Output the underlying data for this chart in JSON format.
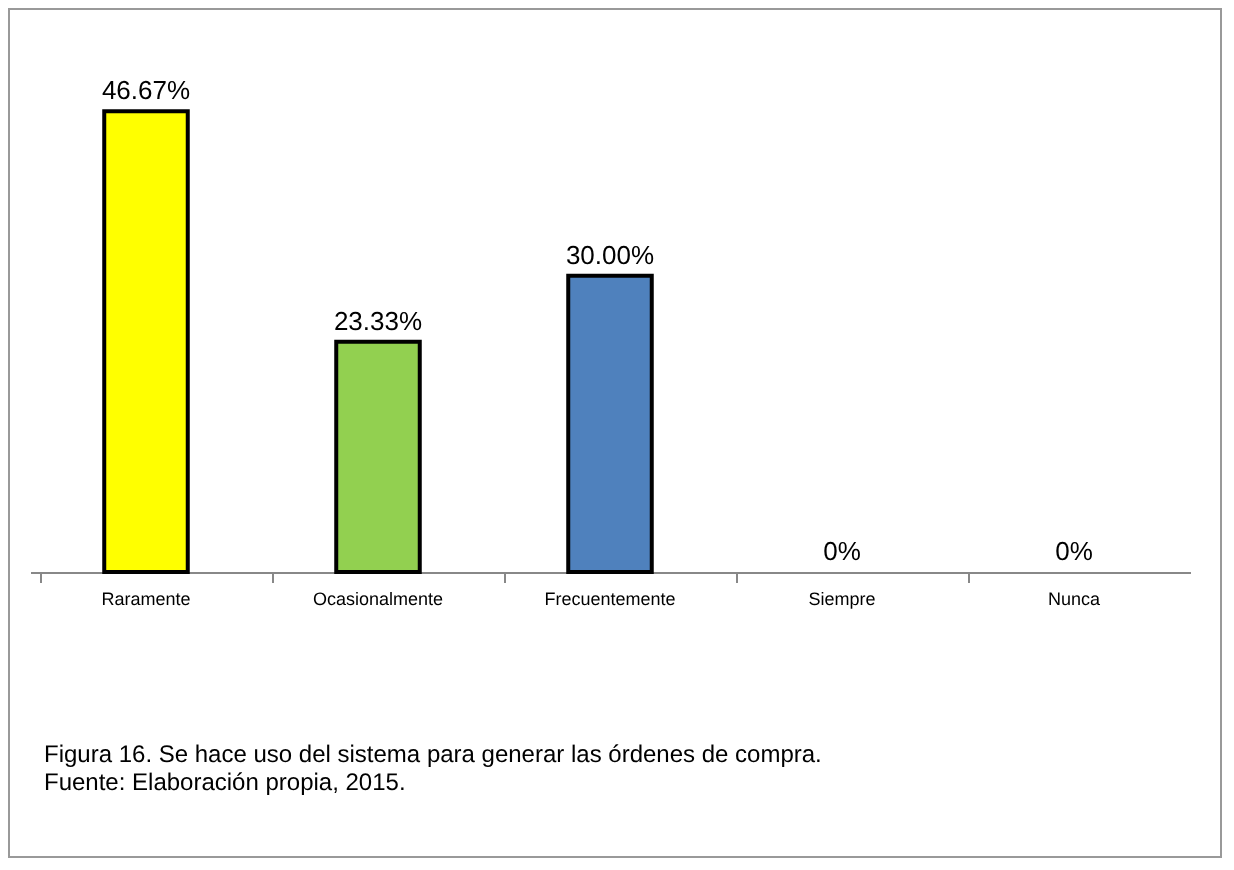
{
  "chart_data": {
    "type": "bar",
    "categories": [
      "Raramente",
      "Ocasionalmente",
      "Frecuentemente",
      "Siempre",
      "Nunca"
    ],
    "values": [
      46.67,
      23.33,
      30.0,
      0,
      0
    ],
    "value_labels": [
      "46.67%",
      "23.33%",
      "30.00%",
      "0%",
      "0%"
    ],
    "colors": [
      "#ffff00",
      "#92d050",
      "#4f81bd",
      "#4f81bd",
      "#4f81bd"
    ],
    "annotations": [
      "Figura 16. Se hace uso del sistema para generar las órdenes de compra.",
      "Fuente: Elaboración propia, 2015."
    ]
  }
}
